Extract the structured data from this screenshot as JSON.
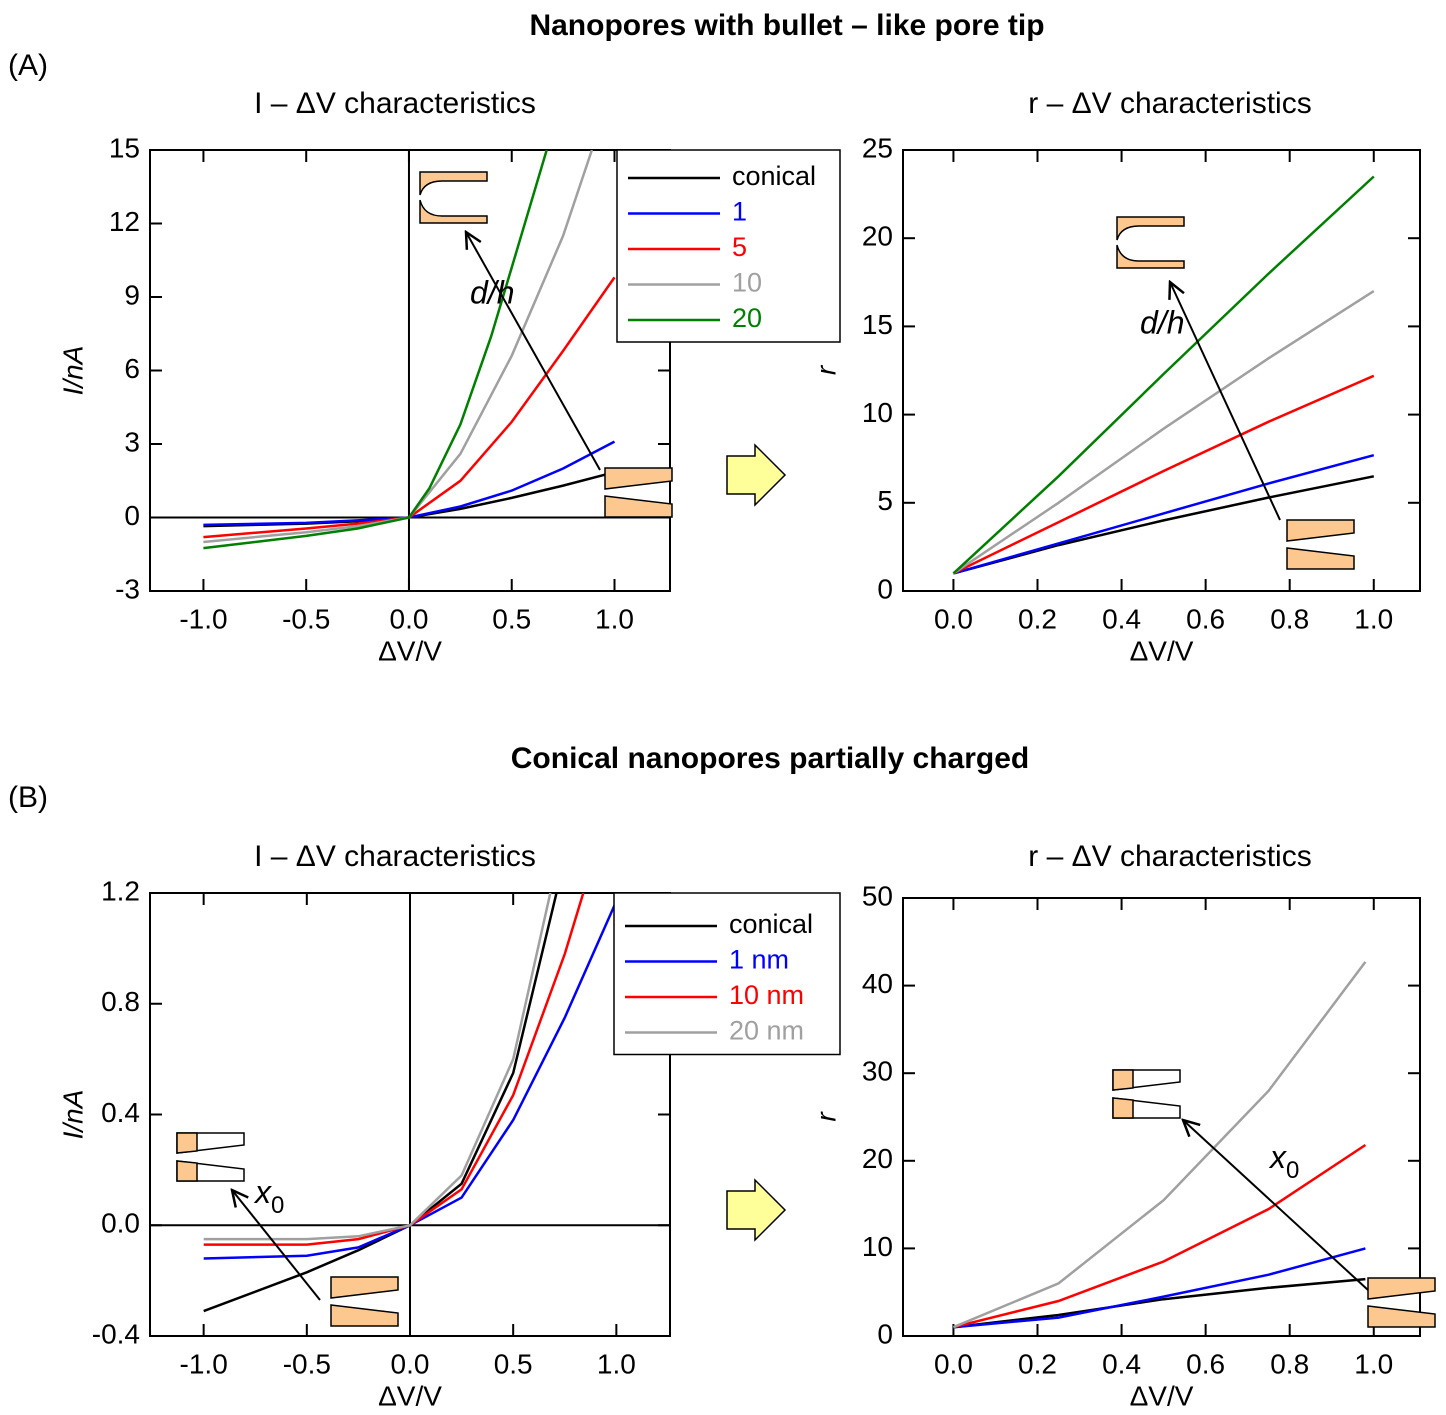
{
  "panels": [
    {
      "label": "(A)",
      "title": "Nanopores with bullet – like pore tip"
    },
    {
      "label": "(B)",
      "title": "Conical nanopores partially charged"
    }
  ],
  "chart_data": [
    {
      "type": "line",
      "title": "I – ΔV characteristics",
      "x_label": "ΔV/V",
      "y_label": "I/nA",
      "xlim": [
        -1.26,
        1.27
      ],
      "ylim": [
        -3,
        15
      ],
      "xticks": [
        {
          "value": -1,
          "label": "-1.0"
        },
        -0.5,
        {
          "value": 0,
          "label": "0.0"
        },
        0.5,
        {
          "value": 1,
          "label": "1.0"
        }
      ],
      "yticks": [
        -3,
        0,
        3,
        6,
        9,
        12,
        15
      ],
      "zero_lines": true,
      "annotation": "d/h",
      "series": [
        {
          "name": "conical",
          "color": "#000000",
          "x": [
            -1,
            -0.5,
            -0.25,
            0,
            0.25,
            0.5,
            0.75,
            1.0
          ],
          "values": [
            -0.35,
            -0.25,
            -0.15,
            0,
            0.35,
            0.8,
            1.3,
            1.85
          ]
        },
        {
          "name": "1",
          "color": "#0000ff",
          "x": [
            -1,
            -0.5,
            -0.25,
            0,
            0.25,
            0.5,
            0.75,
            1.0
          ],
          "values": [
            -0.3,
            -0.22,
            -0.12,
            0,
            0.45,
            1.1,
            2.0,
            3.1
          ]
        },
        {
          "name": "5",
          "color": "#ff0000",
          "x": [
            -1,
            -0.5,
            -0.25,
            0,
            0.25,
            0.5,
            0.75,
            1.0
          ],
          "values": [
            -0.8,
            -0.45,
            -0.25,
            0,
            1.5,
            3.9,
            6.8,
            9.8
          ]
        },
        {
          "name": "10",
          "color": "#a0a0a0",
          "x": [
            -1,
            -0.5,
            -0.25,
            0,
            0.25,
            0.5,
            0.75,
            0.89
          ],
          "values": [
            -1.0,
            -0.6,
            -0.35,
            0,
            2.6,
            6.6,
            11.5,
            15
          ]
        },
        {
          "name": "20",
          "color": "#008000",
          "x": [
            -1,
            -0.5,
            -0.25,
            0,
            0.1,
            0.25,
            0.4,
            0.5,
            0.67
          ],
          "values": [
            -1.25,
            -0.75,
            -0.45,
            0,
            1.2,
            3.8,
            7.4,
            10.2,
            15
          ]
        }
      ]
    },
    {
      "type": "line",
      "title": "r – ΔV characteristics",
      "x_label": "ΔV/V",
      "y_label": "r",
      "xlim": [
        -0.12,
        1.11
      ],
      "ylim": [
        0,
        25
      ],
      "xticks": [
        {
          "value": 0,
          "label": "0.0"
        },
        0.2,
        0.4,
        0.6,
        0.8,
        {
          "value": 1,
          "label": "1.0"
        }
      ],
      "yticks": [
        0,
        5,
        10,
        15,
        20,
        25
      ],
      "zero_lines": false,
      "annotation": "d/h",
      "series": [
        {
          "name": "conical",
          "color": "#000000",
          "x": [
            0,
            0.25,
            0.5,
            0.75,
            1.0
          ],
          "values": [
            1,
            2.6,
            4.0,
            5.3,
            6.5
          ]
        },
        {
          "name": "1",
          "color": "#0000ff",
          "x": [
            0,
            0.25,
            0.5,
            0.75,
            1.0
          ],
          "values": [
            1,
            2.7,
            4.4,
            6.1,
            7.7
          ]
        },
        {
          "name": "5",
          "color": "#ff0000",
          "x": [
            0,
            0.25,
            0.5,
            0.75,
            1.0
          ],
          "values": [
            1,
            3.9,
            6.8,
            9.6,
            12.2
          ]
        },
        {
          "name": "10",
          "color": "#a0a0a0",
          "x": [
            0,
            0.25,
            0.5,
            0.75,
            1.0
          ],
          "values": [
            1,
            5.0,
            9.2,
            13.2,
            17.0
          ]
        },
        {
          "name": "20",
          "color": "#008000",
          "x": [
            0,
            0.25,
            0.5,
            0.75,
            1.0
          ],
          "values": [
            1,
            6.5,
            12.3,
            18.0,
            23.5
          ]
        }
      ]
    },
    {
      "type": "line",
      "title": "I – ΔV characteristics",
      "x_label": "ΔV/V",
      "y_label": "I/nA",
      "xlim": [
        -1.26,
        1.26
      ],
      "ylim": [
        -0.4,
        1.2
      ],
      "xticks": [
        {
          "value": -1,
          "label": "-1.0"
        },
        -0.5,
        {
          "value": 0,
          "label": "0.0"
        },
        0.5,
        {
          "value": 1,
          "label": "1.0"
        }
      ],
      "yticks": [
        -0.4,
        {
          "value": 0,
          "label": "0.0"
        },
        0.4,
        0.8,
        1.2
      ],
      "zero_lines": true,
      "annotation": {
        "main": "x",
        "sub": "0"
      },
      "series": [
        {
          "name": "conical",
          "color": "#000000",
          "x": [
            -1,
            -0.5,
            -0.25,
            0,
            0.25,
            0.5,
            0.71
          ],
          "values": [
            -0.31,
            -0.17,
            -0.09,
            0,
            0.15,
            0.55,
            1.2
          ]
        },
        {
          "name": "1 nm",
          "color": "#0000ff",
          "x": [
            -1,
            -0.5,
            -0.25,
            0,
            0.25,
            0.5,
            0.75,
            1.0
          ],
          "values": [
            -0.12,
            -0.11,
            -0.08,
            0,
            0.1,
            0.38,
            0.75,
            1.17
          ]
        },
        {
          "name": "10 nm",
          "color": "#ff0000",
          "x": [
            -1,
            -0.5,
            -0.25,
            0,
            0.25,
            0.5,
            0.75,
            0.84
          ],
          "values": [
            -0.07,
            -0.07,
            -0.05,
            0,
            0.13,
            0.47,
            0.98,
            1.2
          ]
        },
        {
          "name": "20 nm",
          "color": "#a0a0a0",
          "x": [
            -1,
            -0.5,
            -0.25,
            0,
            0.25,
            0.5,
            0.68
          ],
          "values": [
            -0.05,
            -0.05,
            -0.04,
            0,
            0.18,
            0.6,
            1.2
          ]
        }
      ]
    },
    {
      "type": "line",
      "title": "r – ΔV characteristics",
      "x_label": "ΔV/V",
      "y_label": "r",
      "xlim": [
        -0.12,
        1.11
      ],
      "ylim": [
        0,
        50
      ],
      "xticks": [
        {
          "value": 0,
          "label": "0.0"
        },
        0.2,
        0.4,
        0.6,
        0.8,
        {
          "value": 1,
          "label": "1.0"
        }
      ],
      "yticks": [
        0,
        10,
        20,
        30,
        40,
        50
      ],
      "zero_lines": false,
      "annotation": {
        "main": "x",
        "sub": "0"
      },
      "series": [
        {
          "name": "conical",
          "color": "#000000",
          "x": [
            0,
            0.25,
            0.5,
            0.75,
            0.98
          ],
          "values": [
            1,
            2.4,
            4.2,
            5.5,
            6.5
          ]
        },
        {
          "name": "1 nm",
          "color": "#0000ff",
          "x": [
            0,
            0.25,
            0.5,
            0.75,
            0.98
          ],
          "values": [
            1,
            2.1,
            4.5,
            7.0,
            10.0
          ]
        },
        {
          "name": "10 nm",
          "color": "#ff0000",
          "x": [
            0,
            0.25,
            0.5,
            0.75,
            0.98
          ],
          "values": [
            1,
            4.0,
            8.5,
            14.5,
            21.8
          ]
        },
        {
          "name": "20 nm",
          "color": "#a0a0a0",
          "x": [
            0,
            0.25,
            0.5,
            0.75,
            0.98
          ],
          "values": [
            1,
            6.0,
            15.5,
            28,
            42.7
          ]
        }
      ]
    }
  ]
}
